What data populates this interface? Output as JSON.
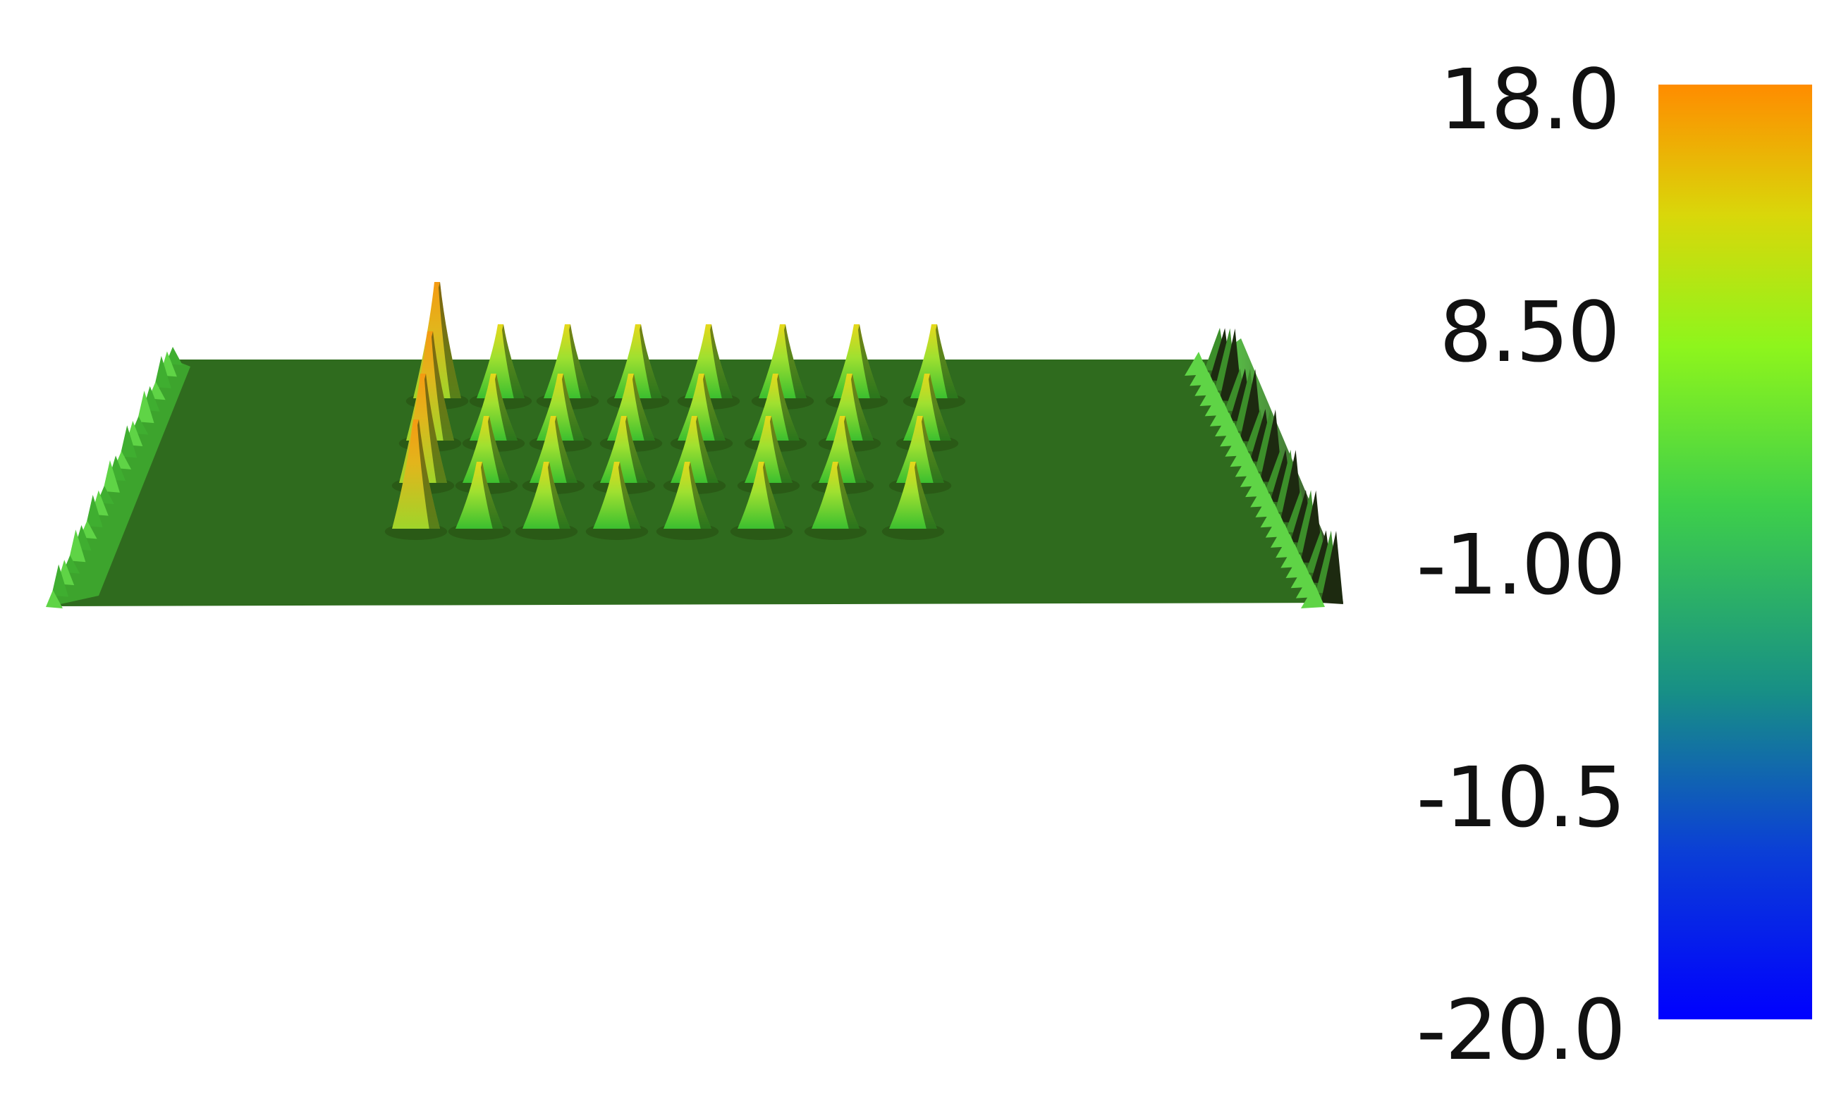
{
  "colorbar": {
    "ticks": [
      "18.0",
      "8.50",
      "-1.00",
      "-10.5",
      "-20.0"
    ],
    "max": 18.0,
    "min": -20.0,
    "colormap": [
      {
        "stop": 0.0,
        "color": "#0000ff"
      },
      {
        "stop": 0.18,
        "color": "#0b3fd6"
      },
      {
        "stop": 0.35,
        "color": "#178f86"
      },
      {
        "stop": 0.55,
        "color": "#3ecf4a"
      },
      {
        "stop": 0.72,
        "color": "#8ef51c"
      },
      {
        "stop": 0.86,
        "color": "#d9d70a"
      },
      {
        "stop": 1.0,
        "color": "#ff8c00"
      }
    ]
  },
  "surface": {
    "base_color": "#2f6b1e",
    "peak_color": "#9fe030",
    "hot_color": "#f59a12",
    "peak_grid": {
      "rows": 4,
      "cols": 8
    }
  }
}
